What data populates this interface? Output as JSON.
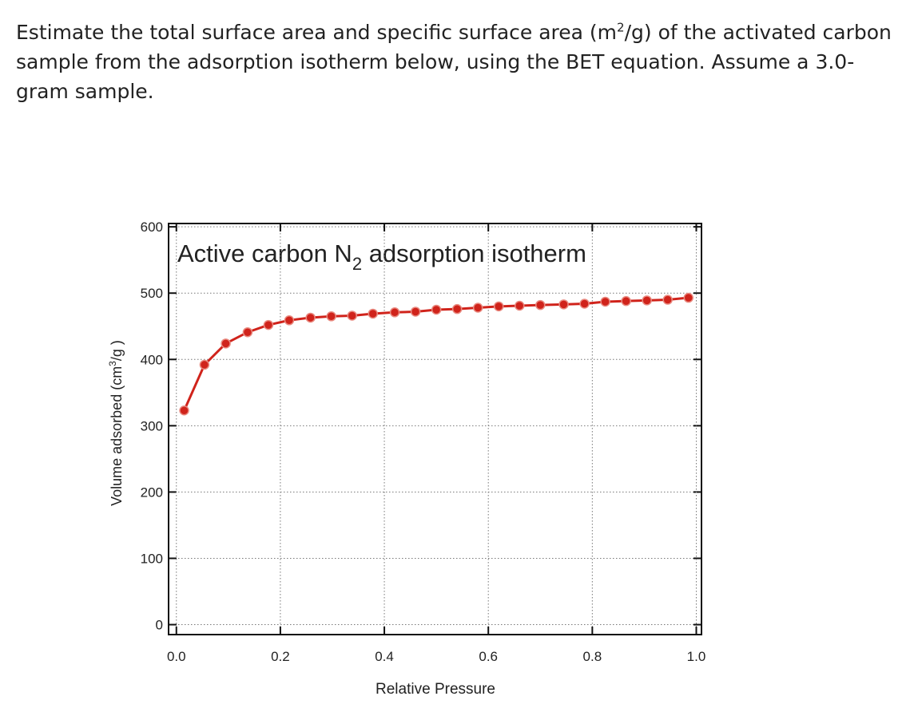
{
  "question": [
    "Estimate the total surface area and specific surface area (m",
    "2",
    "/g) of the activated carbon sample from the adsorption isotherm below, using the BET equation.  Assume a 3.0-gram sample."
  ],
  "chart_data": {
    "type": "line",
    "title": [
      "Active carbon N",
      "2",
      " adsorption isotherm"
    ],
    "x_label": "Relative Pressure",
    "y_label": [
      "Volume adsorbed (cm",
      "3",
      "/g )"
    ],
    "x": [
      0.015,
      0.054,
      0.095,
      0.137,
      0.177,
      0.217,
      0.258,
      0.298,
      0.338,
      0.378,
      0.42,
      0.46,
      0.5,
      0.54,
      0.58,
      0.62,
      0.66,
      0.7,
      0.745,
      0.785,
      0.825,
      0.865,
      0.905,
      0.945,
      0.985
    ],
    "series": [
      {
        "color": "#d0231b",
        "values": [
          323,
          392,
          424,
          441,
          452,
          459,
          463,
          465,
          466,
          469,
          471,
          472,
          475,
          476,
          478,
          480,
          481,
          482,
          483,
          484,
          487,
          488,
          489,
          490,
          493
        ]
      }
    ],
    "xlim": [
      -0.015,
      1.01
    ],
    "ylim": [
      -15,
      605
    ],
    "xticks": [
      {
        "value": 0,
        "label": "0.0"
      },
      0.2,
      0.4,
      0.6,
      0.8,
      {
        "value": 1,
        "label": "1.0"
      }
    ],
    "yticks": [
      0,
      100,
      200,
      300,
      400,
      500,
      600
    ],
    "grid": true
  }
}
